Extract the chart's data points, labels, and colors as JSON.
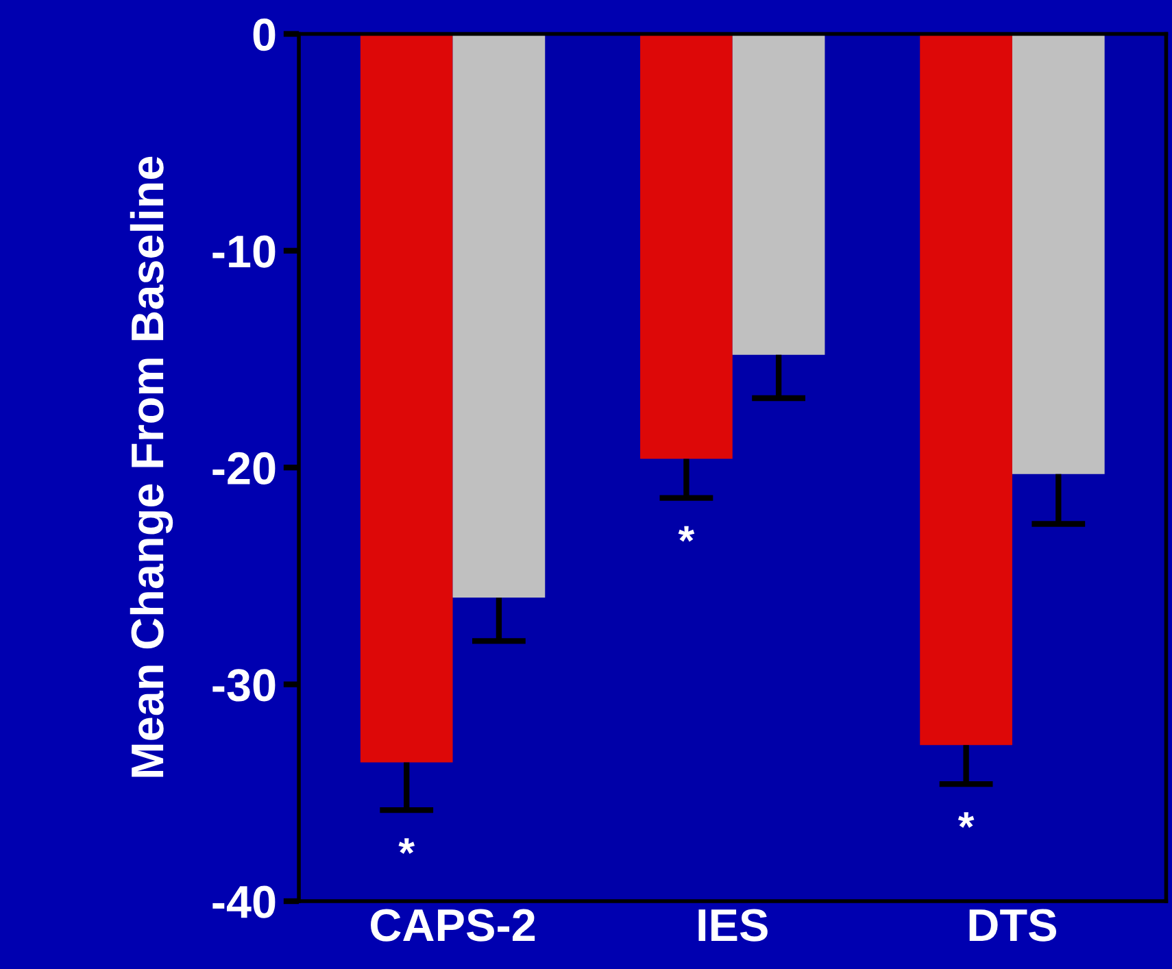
{
  "chart_data": {
    "type": "bar",
    "ylabel": "Mean Change From Baseline",
    "categories": [
      "CAPS-2",
      "IES",
      "DTS"
    ],
    "series": [
      {
        "color": "#dd0808",
        "values": [
          -33.6,
          -19.6,
          -32.8
        ],
        "errors": [
          [
            -35.8,
            -33.6
          ],
          [
            -21.4,
            -19.6
          ],
          [
            -34.6,
            -32.8
          ]
        ]
      },
      {
        "color": "#c0c0c0",
        "values": [
          -26.0,
          -14.8,
          -20.3
        ],
        "errors": [
          [
            -28.0,
            -26.0
          ],
          [
            -16.8,
            -14.8
          ],
          [
            -22.6,
            -20.3
          ]
        ]
      }
    ],
    "annotations": [
      "*",
      "*",
      "*"
    ],
    "ylim": [
      -40,
      0
    ],
    "yticks": [
      {
        "value": -40,
        "label": "-40"
      },
      {
        "value": -30,
        "label": "-30"
      },
      {
        "value": -20,
        "label": "-20"
      },
      {
        "value": -10,
        "label": "-10"
      },
      0
    ],
    "grid": false,
    "legend": false
  }
}
